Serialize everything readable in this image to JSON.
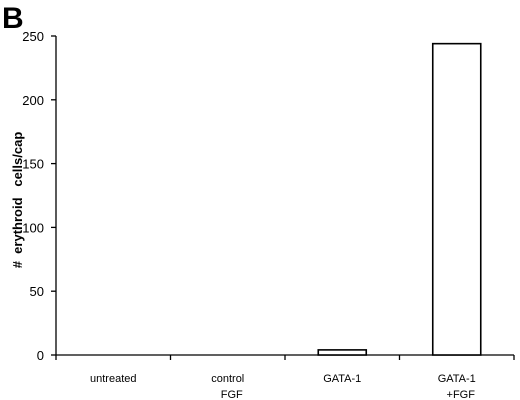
{
  "panel_label": "B",
  "chart_data": {
    "type": "bar",
    "categories": [
      [
        "untreated"
      ],
      [
        "control",
        "FGF"
      ],
      [
        "GATA-1"
      ],
      [
        "GATA-1",
        "+FGF"
      ]
    ],
    "values": [
      0,
      0,
      4,
      244
    ],
    "ylabel": "#  erythroid   cells/cap",
    "ylim": [
      0,
      250
    ],
    "yticks": [
      0,
      50,
      100,
      150,
      200,
      250
    ],
    "grid": false,
    "legend": "none",
    "colors": {
      "bar_fill": "#ffffff",
      "bar_stroke": "#000000",
      "axis": "#000000"
    }
  }
}
